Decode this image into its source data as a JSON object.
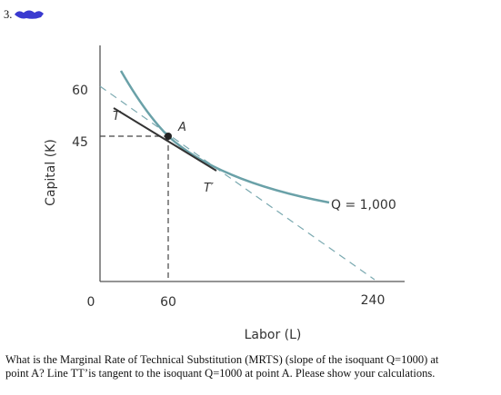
{
  "question_number": "3.",
  "figure": {
    "y_axis_label": "Capital (K)",
    "x_axis_label": "Labor (L)",
    "y_ticks": [
      "60",
      "45"
    ],
    "x_ticks": [
      "0",
      "60",
      "240"
    ],
    "point_label": "A",
    "tangent_labels": [
      "T",
      "T′"
    ],
    "isoquant_label": "Q = 1,000"
  },
  "question": {
    "lines": [
      "What is the Marginal Rate of Technical Substitution (MRTS) (slope of the isoquant Q=1000) at",
      "point A? Line TT’is tangent to the isoquant Q=1000 at point A. Please show your calculations."
    ]
  }
}
